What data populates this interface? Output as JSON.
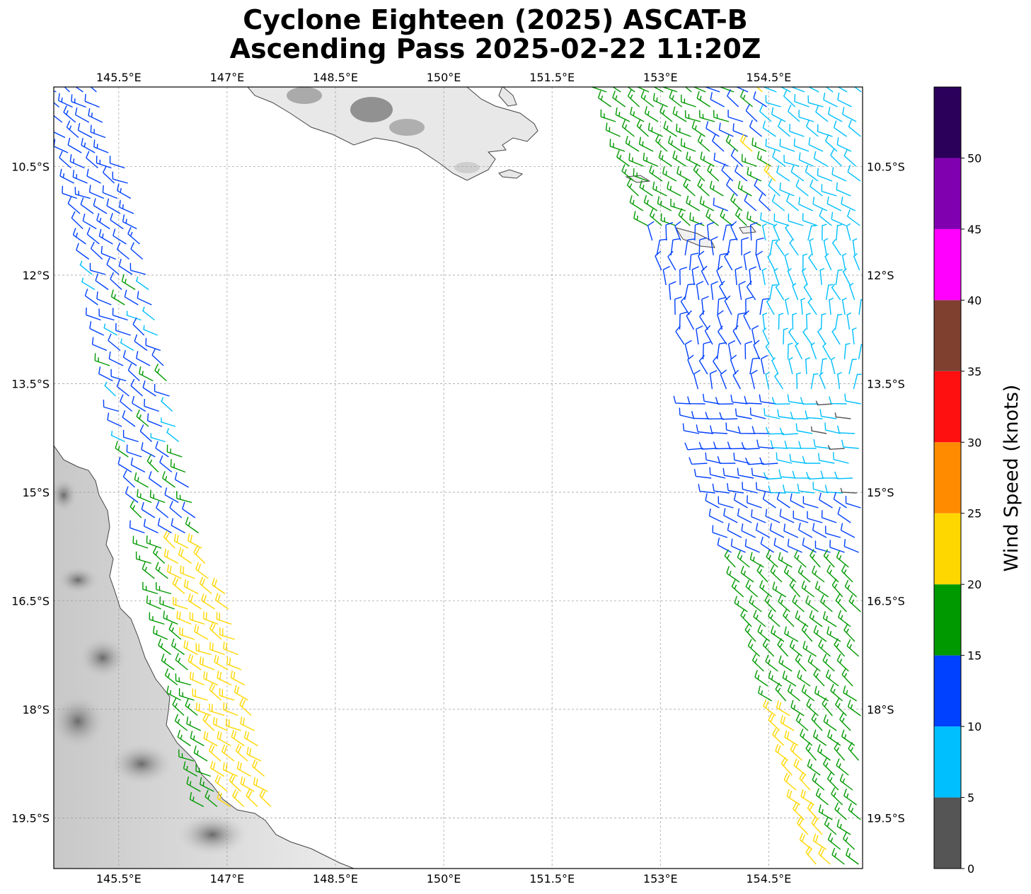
{
  "title": {
    "line1": "Cyclone Eighteen (2025) ASCAT-B",
    "line2": "Ascending Pass 2025-02-22 11:20Z"
  },
  "map": {
    "lon_range": [
      144.6,
      155.8
    ],
    "lat_range": [
      -20.2,
      -9.4
    ],
    "lon_ticks": [
      {
        "value": 145.5,
        "label": "145.5°E"
      },
      {
        "value": 147.0,
        "label": "147°E"
      },
      {
        "value": 148.5,
        "label": "148.5°E"
      },
      {
        "value": 150.0,
        "label": "150°E"
      },
      {
        "value": 151.5,
        "label": "151.5°E"
      },
      {
        "value": 153.0,
        "label": "153°E"
      },
      {
        "value": 154.5,
        "label": "154.5°E"
      }
    ],
    "lat_ticks": [
      {
        "value": -10.5,
        "label": "10.5°S"
      },
      {
        "value": -12.0,
        "label": "12°S"
      },
      {
        "value": -13.5,
        "label": "13.5°S"
      },
      {
        "value": -15.0,
        "label": "15°S"
      },
      {
        "value": -16.5,
        "label": "16.5°S"
      },
      {
        "value": -18.0,
        "label": "18°S"
      },
      {
        "value": -19.5,
        "label": "19.5°S"
      }
    ],
    "gridlines": true,
    "coastline_color": "#333333",
    "land_shading": "grayscale elevation"
  },
  "colorbar": {
    "label": "Wind Speed (knots)",
    "placement": "right",
    "bins": [
      {
        "min": 0,
        "max": 5,
        "color": "#555555"
      },
      {
        "min": 5,
        "max": 10,
        "color": "#00bfff"
      },
      {
        "min": 10,
        "max": 15,
        "color": "#0040ff"
      },
      {
        "min": 15,
        "max": 20,
        "color": "#009900"
      },
      {
        "min": 20,
        "max": 25,
        "color": "#ffd700"
      },
      {
        "min": 25,
        "max": 30,
        "color": "#ff8c00"
      },
      {
        "min": 30,
        "max": 35,
        "color": "#ff1010"
      },
      {
        "min": 35,
        "max": 40,
        "color": "#804030"
      },
      {
        "min": 40,
        "max": 45,
        "color": "#ff00ff"
      },
      {
        "min": 45,
        "max": 50,
        "color": "#8000b0"
      },
      {
        "min": 50,
        "max": 55,
        "color": "#2a005a"
      }
    ],
    "tick_labels": [
      "0",
      "5",
      "10",
      "15",
      "20",
      "25",
      "30",
      "35",
      "40",
      "45",
      "50"
    ]
  },
  "chart_data": {
    "type": "wind-barb map",
    "units": "knots",
    "series": [
      {
        "region": "western swath, north",
        "lon": [
          144.6,
          146.0
        ],
        "lat": [
          -9.4,
          -12.3
        ],
        "dominant_speed_kt": [
          10,
          15
        ],
        "direction_from": "southeast"
      },
      {
        "region": "western swath, middle",
        "lon": [
          145.0,
          146.9
        ],
        "lat": [
          -12.3,
          -15.2
        ],
        "dominant_speed_kt": [
          5,
          15
        ],
        "direction_from": "southeast"
      },
      {
        "region": "western swath, south",
        "lon": [
          145.9,
          147.7
        ],
        "lat": [
          -15.2,
          -19.4
        ],
        "dominant_speed_kt": [
          15,
          25
        ],
        "direction_from": "southeast"
      },
      {
        "region": "eastern swath, north",
        "lon": [
          152.3,
          155.8
        ],
        "lat": [
          -9.4,
          -13.5
        ],
        "dominant_speed_kt": [
          5,
          20
        ],
        "direction_from": "varied, cyclonic"
      },
      {
        "region": "eastern swath, middle",
        "lon": [
          153.5,
          155.8
        ],
        "lat": [
          -13.5,
          -16.0
        ],
        "dominant_speed_kt": [
          0,
          15
        ],
        "direction_from": "southeast"
      },
      {
        "region": "eastern swath, south",
        "lon": [
          154.0,
          155.8
        ],
        "lat": [
          -16.0,
          -20.2
        ],
        "dominant_speed_kt": [
          15,
          25
        ],
        "direction_from": "southeast"
      }
    ]
  }
}
